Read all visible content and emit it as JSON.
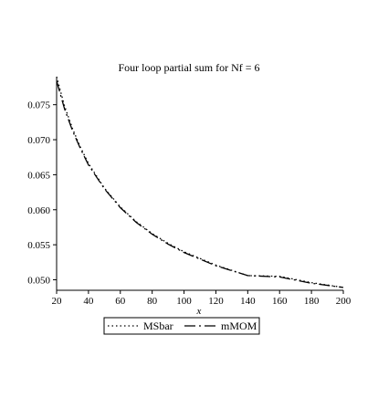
{
  "chart_data": {
    "type": "line",
    "title": "Four loop partial sum for Nf = 6",
    "xlabel": "x",
    "ylabel": "",
    "xlim": [
      20,
      200
    ],
    "ylim": [
      0.0485,
      0.079
    ],
    "x_ticks": [
      "20",
      "40",
      "60",
      "80",
      "100",
      "120",
      "140",
      "160",
      "180",
      "200"
    ],
    "x_tick_values": [
      20,
      40,
      60,
      80,
      100,
      120,
      140,
      160,
      180,
      200
    ],
    "y_ticks": [
      "0.050",
      "0.055",
      "0.060",
      "0.065",
      "0.070",
      "0.075"
    ],
    "y_tick_values": [
      0.05,
      0.055,
      0.06,
      0.065,
      0.07,
      0.075
    ],
    "grid": false,
    "legend_position": "bottom",
    "x": [
      20,
      25,
      30,
      35,
      40,
      50,
      60,
      70,
      80,
      90,
      100,
      120,
      140,
      160,
      180,
      200
    ],
    "series": [
      {
        "name": "MSbar",
        "style": "dotted",
        "color": "#000000",
        "values": [
          0.079,
          0.0748,
          0.0716,
          0.0689,
          0.0666,
          0.0631,
          0.0604,
          0.0583,
          0.0566,
          0.0552,
          0.054,
          0.0521,
          0.0506,
          0.0505,
          0.0496,
          0.0489
        ]
      },
      {
        "name": "mMOM",
        "style": "dash-dot",
        "color": "#000000",
        "values": [
          0.0784,
          0.0744,
          0.0713,
          0.0687,
          0.0664,
          0.063,
          0.0603,
          0.0582,
          0.0565,
          0.0551,
          0.0539,
          0.052,
          0.0506,
          0.0504,
          0.0495,
          0.0489
        ]
      }
    ]
  }
}
